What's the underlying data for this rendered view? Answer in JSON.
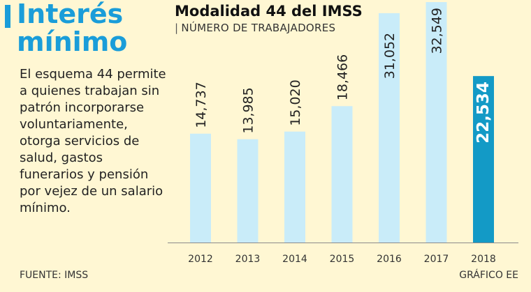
{
  "sidebar": {
    "title_line1": "Interés",
    "title_line2": "mínimo",
    "description": "El esquema 44 permite a quienes trabajan sin patrón incorporarse voluntariamente, otorga servicios de salud, gastos funerarios y pensión por vejez de un salario mínimo."
  },
  "footer": {
    "source": "FUENTE: IMSS",
    "credit": "GRÁFICO EE"
  },
  "colors": {
    "accent": "#1a9dd9",
    "bar": "#c9ecf9",
    "highlight": "#139ac6",
    "background": "#fff7d3"
  },
  "chart_data": {
    "type": "bar",
    "title": "Modalidad 44 del IMSS",
    "subtitle": "NÚMERO DE TRABAJADORES",
    "categories": [
      "2012",
      "2013",
      "2014",
      "2015",
      "2016",
      "2017",
      "2018"
    ],
    "values": [
      14737,
      13985,
      15020,
      18466,
      31052,
      32549,
      22534
    ],
    "value_labels": [
      "14,737",
      "13,985",
      "15,020",
      "18,466",
      "31,052",
      "32,549",
      "22,534"
    ],
    "highlight_index": 6,
    "ylim": [
      0,
      32549
    ],
    "grid": false,
    "legend": "none"
  }
}
